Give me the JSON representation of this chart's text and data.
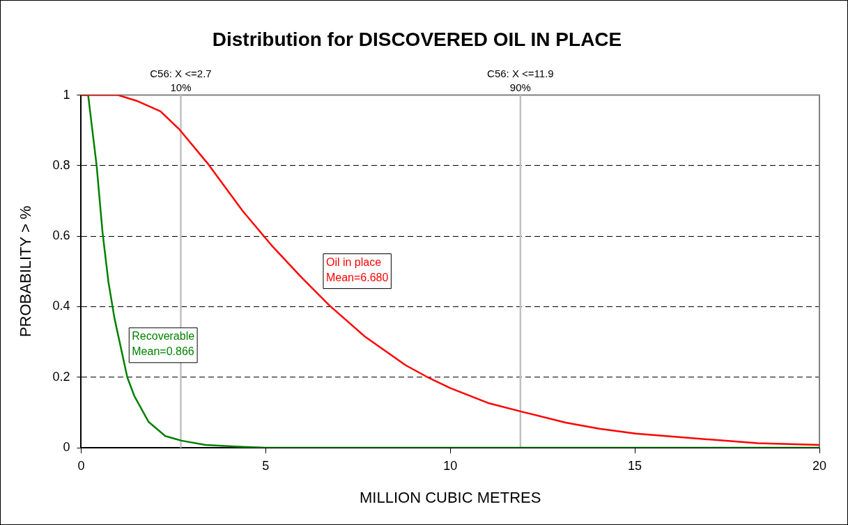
{
  "chart_data": {
    "type": "line",
    "title": "Distribution for DISCOVERED OIL IN PLACE",
    "xlabel": "MILLION CUBIC METRES",
    "ylabel": "PROBABILITY > %",
    "xlim": [
      0,
      20
    ],
    "xticks": [
      0,
      5,
      10,
      15,
      20
    ],
    "ylim": [
      0,
      1
    ],
    "yticks": [
      0,
      0.2,
      0.4,
      0.6,
      0.8,
      1
    ],
    "grid": "y",
    "legend": false,
    "marker": "none",
    "line_style": "solid",
    "series": [
      {
        "color": "#ff0000",
        "x": [
          0,
          1,
          1.5,
          2.15,
          2.66,
          3.43,
          4.38,
          5.15,
          5.96,
          6.73,
          7.69,
          8.79,
          9.42,
          10,
          11.02,
          11.98,
          13.13,
          14.04,
          15.03,
          17.05,
          18.33,
          20
        ],
        "values": [
          1,
          1,
          0.984,
          0.954,
          0.903,
          0.806,
          0.671,
          0.575,
          0.484,
          0.403,
          0.315,
          0.234,
          0.198,
          0.169,
          0.127,
          0.101,
          0.071,
          0.054,
          0.04,
          0.023,
          0.013,
          0.008
        ]
      },
      {
        "color": "#008000",
        "x": [
          0,
          0.19,
          0.42,
          0.58,
          0.74,
          0.9,
          1.25,
          1.44,
          1.83,
          2.28,
          2.72,
          3.37,
          4.26,
          5,
          20
        ],
        "values": [
          1,
          1,
          0.8,
          0.611,
          0.47,
          0.369,
          0.2,
          0.147,
          0.073,
          0.033,
          0.02,
          0.008,
          0.003,
          0,
          0
        ]
      }
    ],
    "ref_lines": [
      {
        "axis": "x",
        "value": 2.7,
        "label": "C56: X <=2.7\n10%",
        "color": "#c0c0c0"
      },
      {
        "axis": "x",
        "value": 11.9,
        "label": "C56: X <=11.9\n90%",
        "color": "#c0c0c0"
      }
    ],
    "annotations": [
      "Oil in place\nMean=6.680",
      "Recoverable\nMean=0.866"
    ]
  }
}
